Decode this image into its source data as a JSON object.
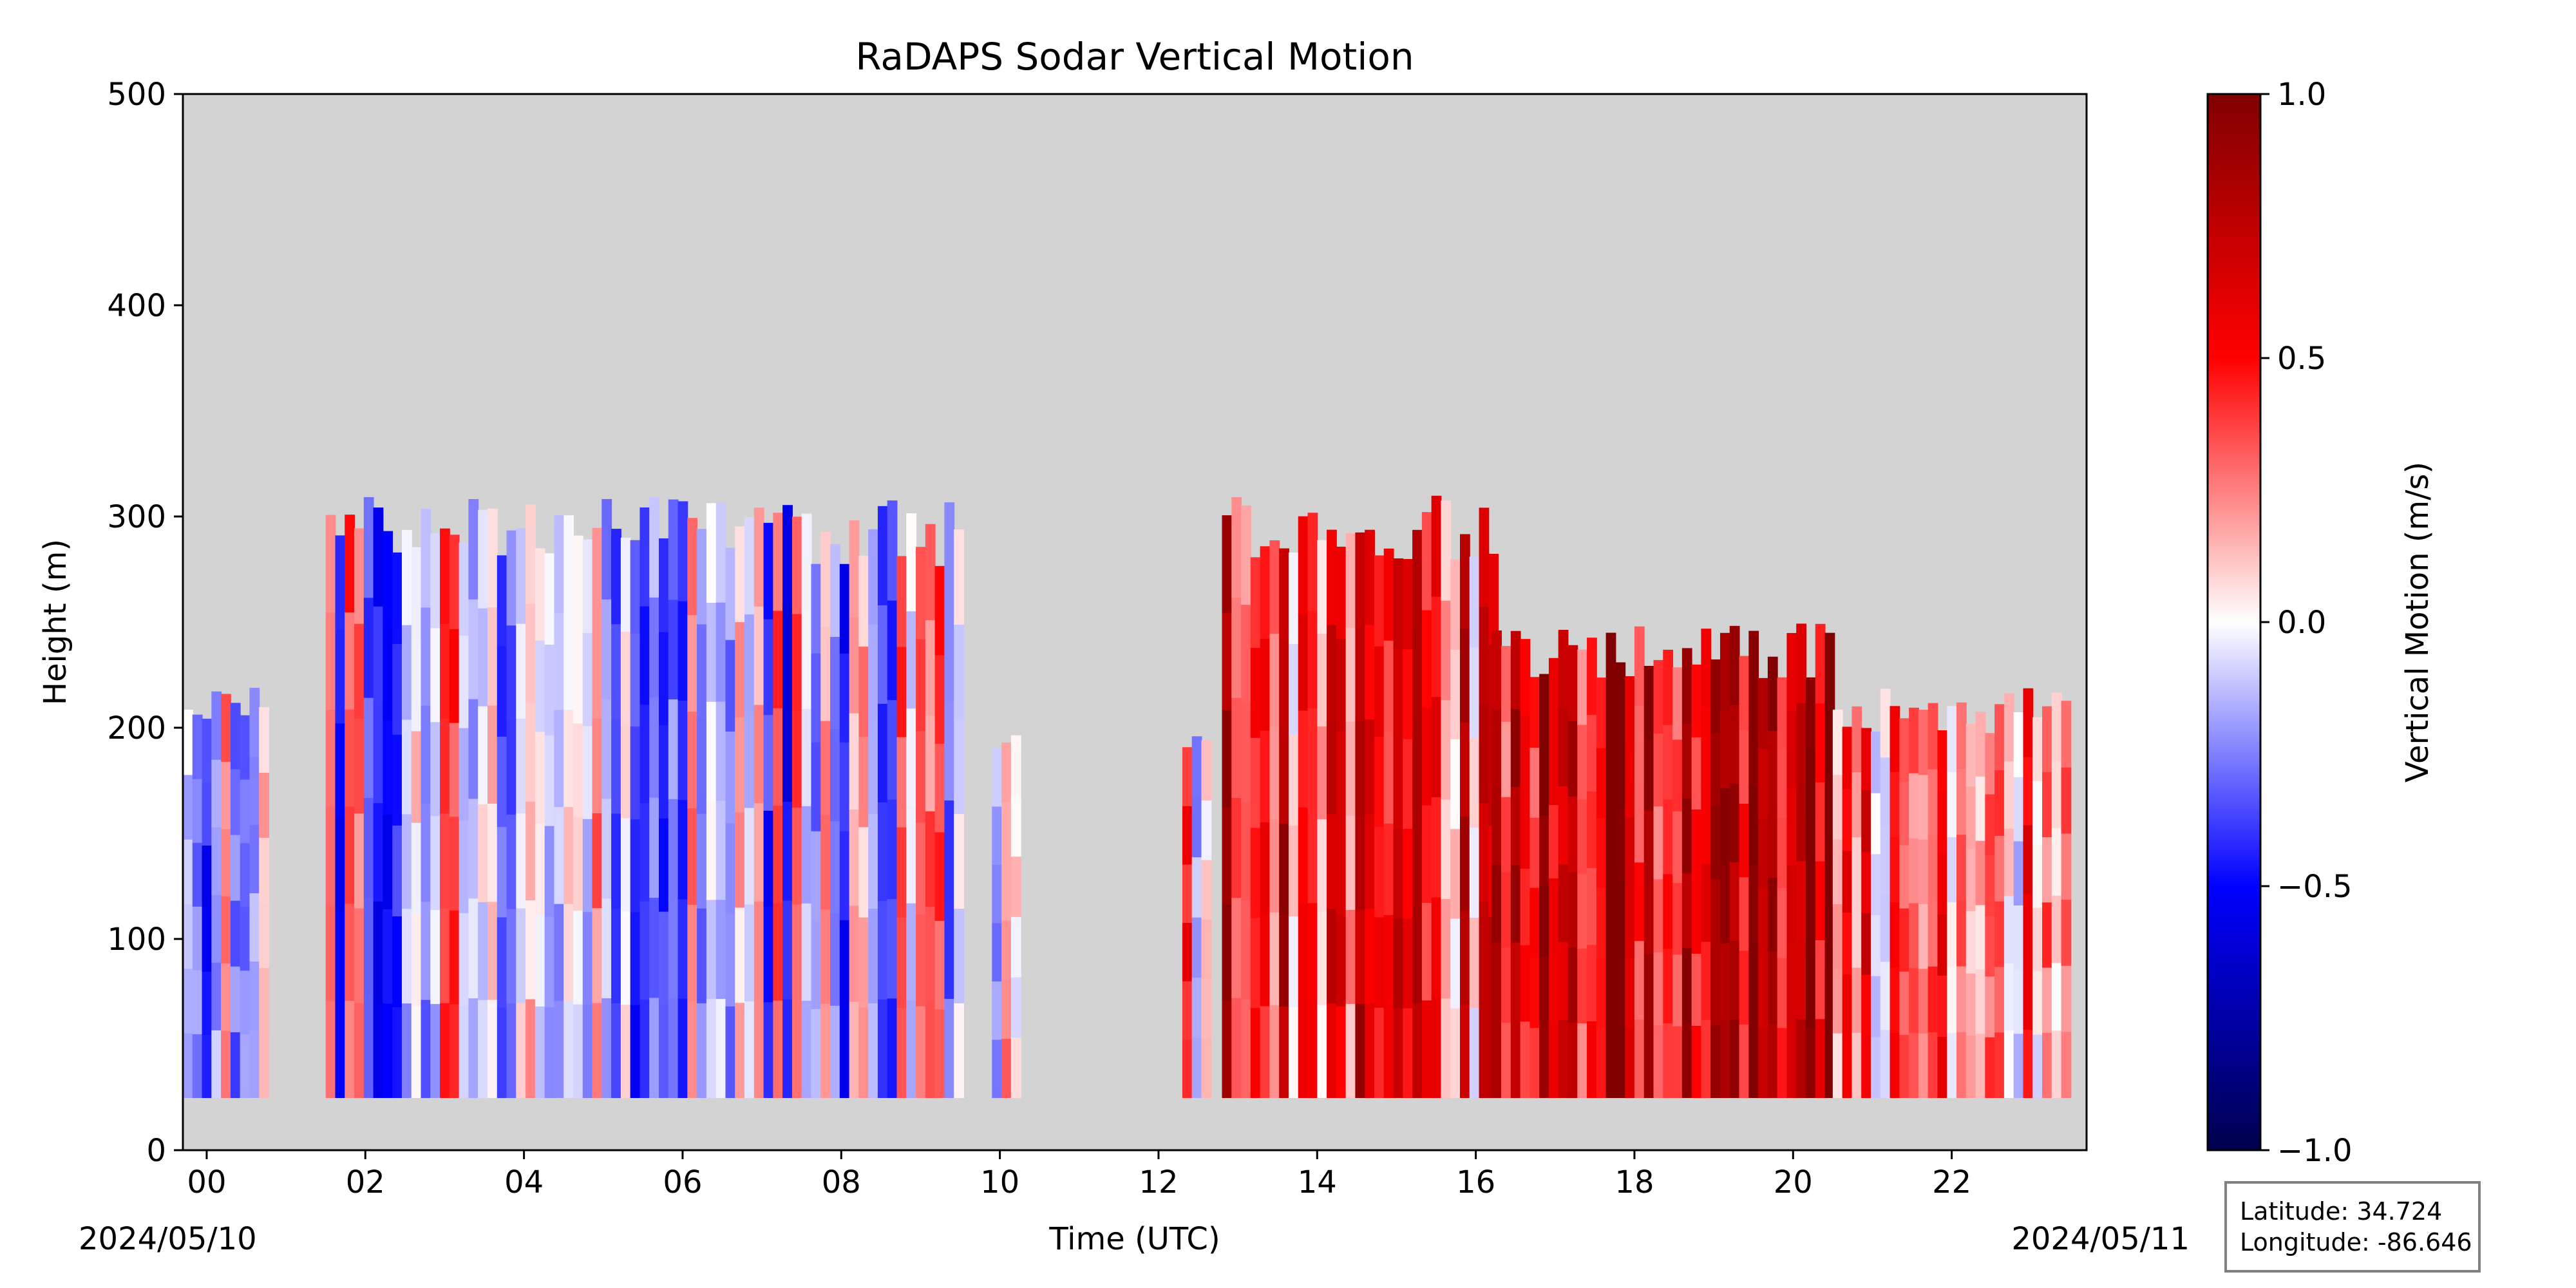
{
  "chart_data": {
    "type": "heatmap",
    "title": "RaDAPS Sodar Vertical Motion",
    "xlabel": "Time (UTC)",
    "ylabel": "Height (m)",
    "xlim": [
      -0.3,
      23.7
    ],
    "ylim": [
      0,
      500
    ],
    "x_ticks": [
      0,
      2,
      4,
      6,
      8,
      10,
      12,
      14,
      16,
      18,
      20,
      22
    ],
    "x_tick_labels": [
      "00",
      "02",
      "04",
      "06",
      "08",
      "10",
      "12",
      "14",
      "16",
      "18",
      "20",
      "22"
    ],
    "y_ticks": [
      0,
      100,
      200,
      300,
      400,
      500
    ],
    "y_tick_labels": [
      "0",
      "100",
      "200",
      "300",
      "400",
      "500"
    ],
    "start_date_label": "2024/05/10",
    "end_date_label": "2024/05/11",
    "background_color": "#d3d3d3",
    "colorbar": {
      "label": "Vertical Motion (m/s)",
      "range": [
        -1.0,
        1.0
      ],
      "ticks": [
        1.0,
        0.5,
        0.0,
        -0.5,
        -1.0
      ],
      "tick_labels": [
        "1.0",
        "0.5",
        "0.0",
        "−0.5",
        "−1.0"
      ],
      "colormap": "seismic"
    },
    "data_segments": [
      {
        "start": -0.3,
        "end": 0.7,
        "bottom": 25,
        "top": 220,
        "mean_motion": -0.15
      },
      {
        "start": 1.5,
        "end": 9.45,
        "bottom": 25,
        "top": 310,
        "mean_motion": -0.05
      },
      {
        "start": 9.9,
        "end": 10.2,
        "bottom": 25,
        "top": 205,
        "mean_motion": 0.25
      },
      {
        "start": 12.3,
        "end": 12.6,
        "bottom": 25,
        "top": 205,
        "mean_motion": 0.15
      },
      {
        "start": 12.8,
        "end": 16.2,
        "bottom": 25,
        "top": 310,
        "mean_motion": 0.45
      },
      {
        "start": 16.2,
        "end": 20.5,
        "bottom": 25,
        "top": 250,
        "mean_motion": 0.75
      },
      {
        "start": 20.5,
        "end": 23.4,
        "bottom": 25,
        "top": 220,
        "mean_motion": 0.35
      }
    ],
    "grid": false
  },
  "info_box": {
    "latitude": "Latitude: 34.724",
    "longitude": "Longitude: -86.646"
  }
}
